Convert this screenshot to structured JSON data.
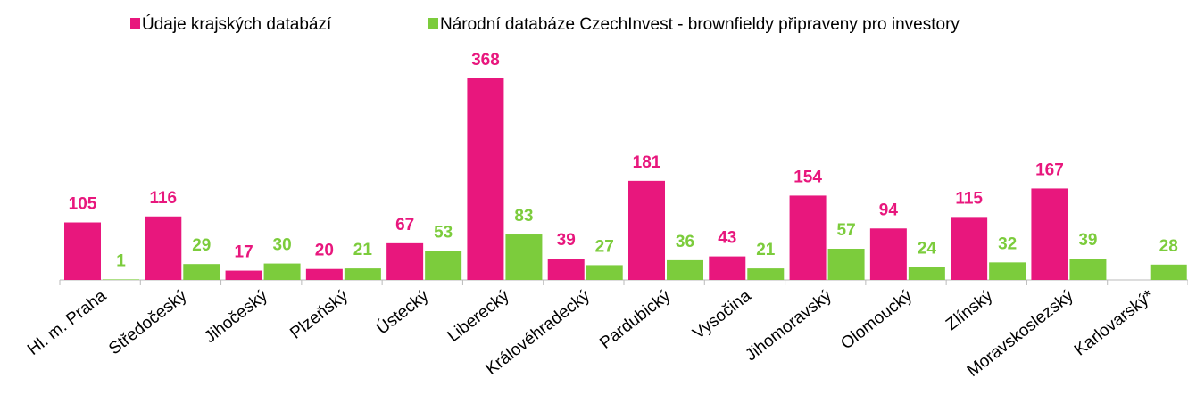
{
  "chart_data": {
    "type": "bar",
    "categories": [
      "Hl. m. Praha",
      "Středočeský",
      "Jihočeský",
      "Plzeňský",
      "Ústecký",
      "Liberecký",
      "Královéhradecký",
      "Pardubický",
      "Vysočina",
      "Jihomoravský",
      "Olomoucký",
      "Zlínský",
      "Moravskoslezský",
      "Karlovarský*"
    ],
    "series": [
      {
        "name": "Údaje krajských databází",
        "color": "#e8177d",
        "values": [
          105,
          116,
          17,
          20,
          67,
          368,
          39,
          181,
          43,
          154,
          94,
          115,
          167,
          null
        ]
      },
      {
        "name": "Národní databáze CzechInvest - brownfieldy připraveny pro investory",
        "color": "#7ccc3c",
        "values": [
          1,
          29,
          30,
          21,
          53,
          83,
          27,
          36,
          21,
          57,
          24,
          32,
          39,
          28
        ]
      }
    ],
    "legend": "top"
  }
}
